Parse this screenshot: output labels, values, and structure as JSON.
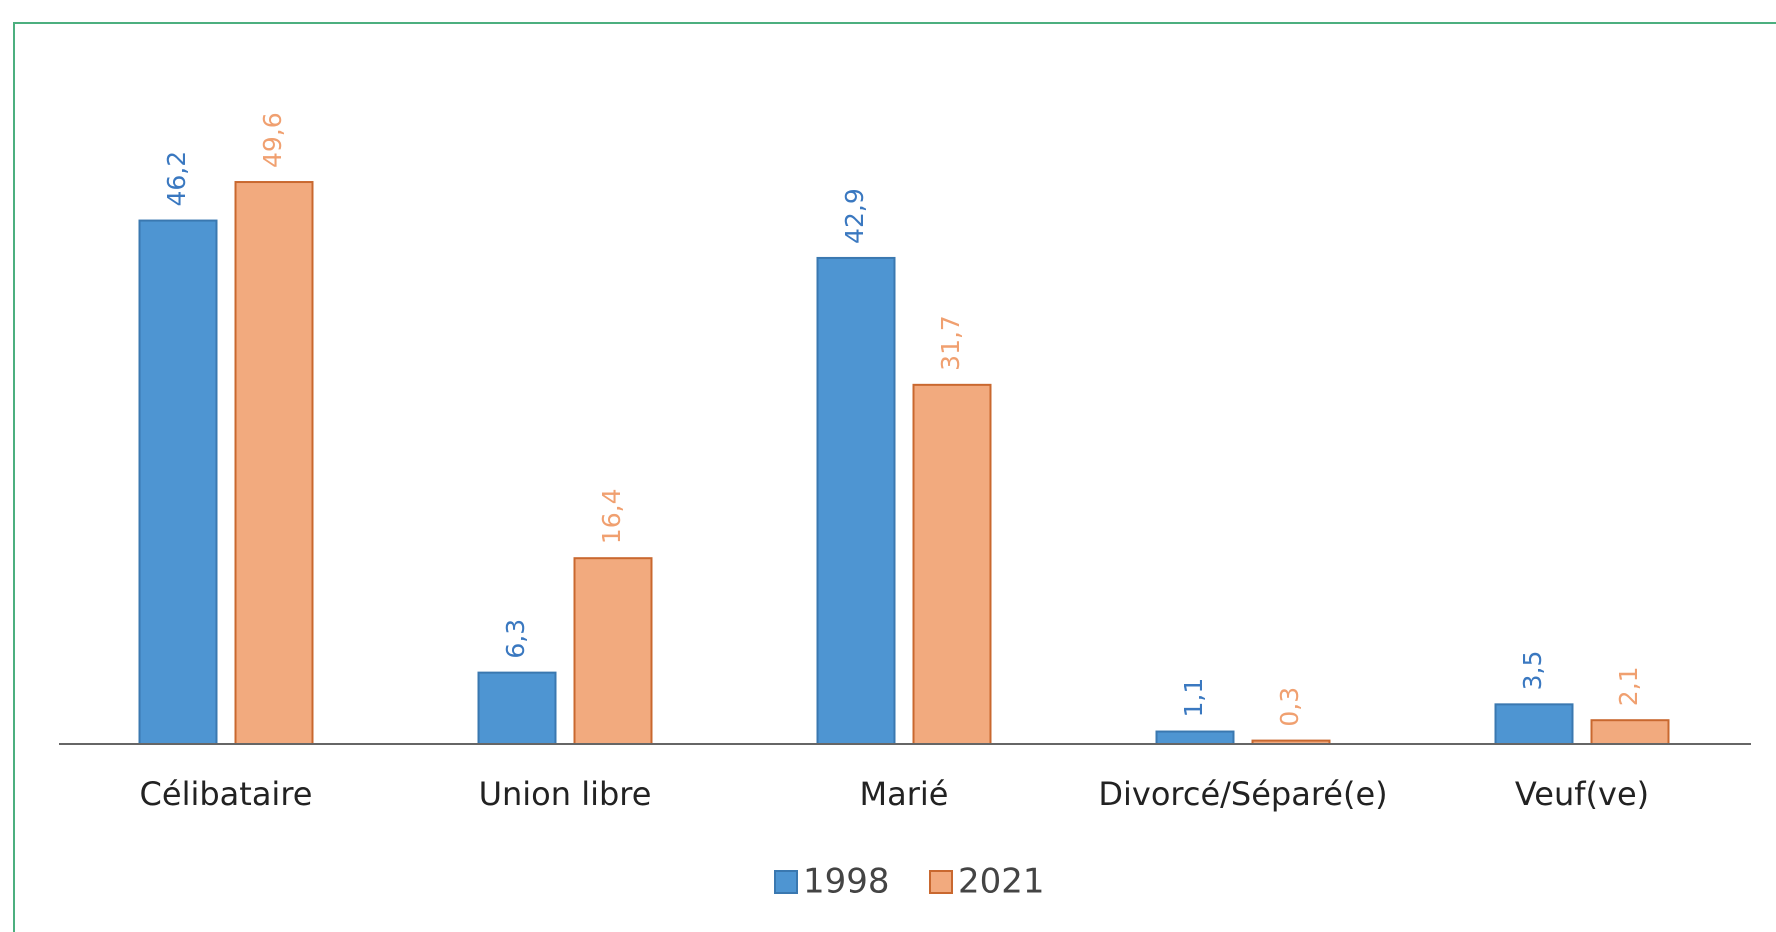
{
  "chart_data": {
    "type": "bar",
    "categories": [
      "Célibataire",
      "Union libre",
      "Marié",
      "Divorcé/Séparé(e)",
      "Veuf(ve)"
    ],
    "series": [
      {
        "name": "1998",
        "color": "#4e95d2",
        "values": [
          46.2,
          6.3,
          42.9,
          1.1,
          3.5
        ],
        "value_labels": [
          "46,2",
          "6,3",
          "42,9",
          "1,1",
          "3,5"
        ]
      },
      {
        "name": "2021",
        "color": "#f2aa7e",
        "values": [
          49.6,
          16.4,
          31.7,
          0.3,
          2.1
        ],
        "value_labels": [
          "49,6",
          "16,4",
          "31,7",
          "0,3",
          "2,1"
        ]
      }
    ],
    "legend": "bottom"
  }
}
